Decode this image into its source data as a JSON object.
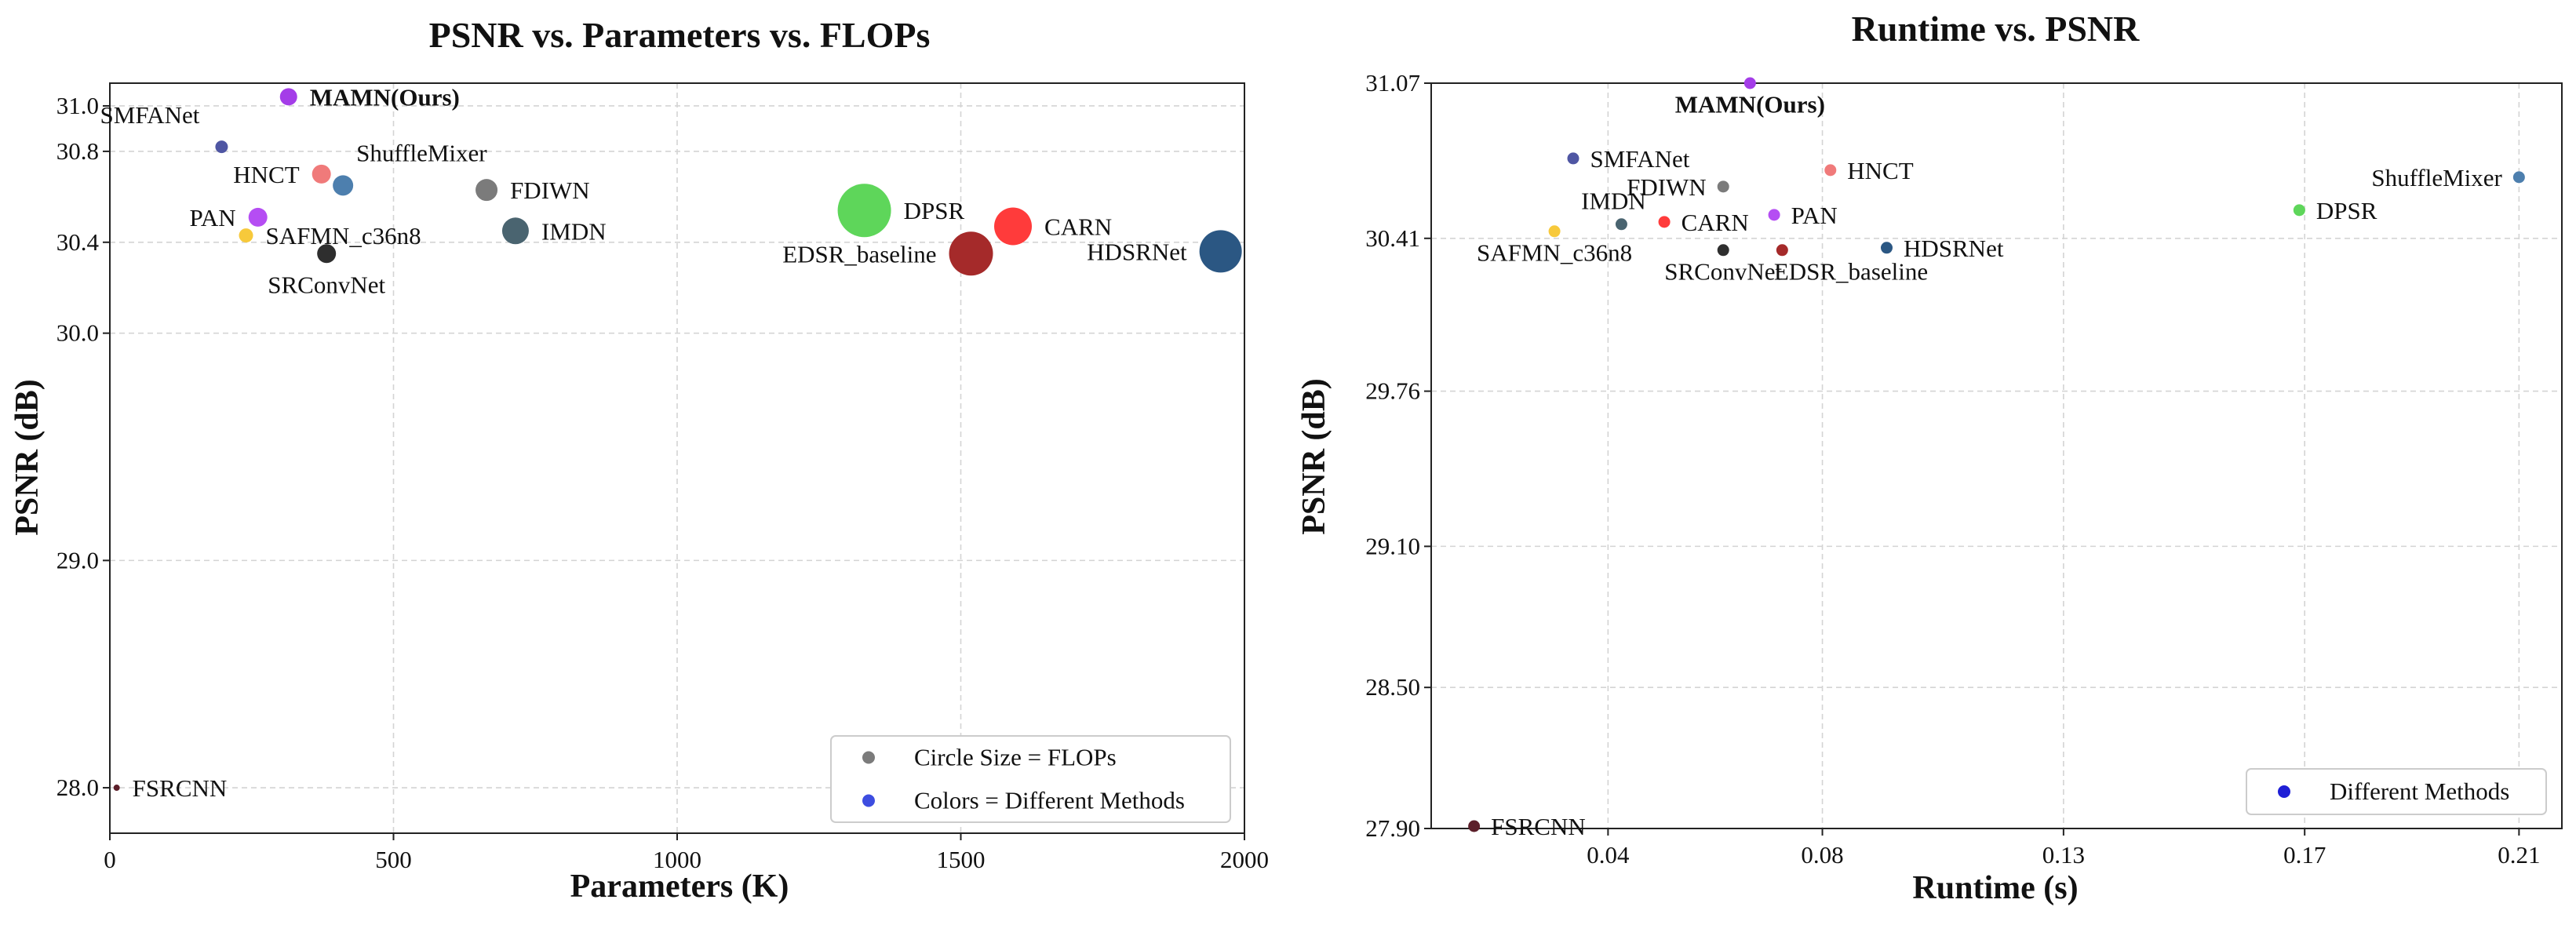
{
  "chart_data": [
    {
      "type": "scatter",
      "title": "PSNR vs. Parameters vs. FLOPs",
      "xlabel": "Parameters (K)",
      "ylabel": "PSNR (dB)",
      "xlim": [
        0,
        2000
      ],
      "ylim": [
        27.8,
        31.1
      ],
      "xticks": [
        0,
        500,
        1000,
        1500,
        2000
      ],
      "xtick_labels": [
        "0",
        "500",
        "1000",
        "1500",
        "2000"
      ],
      "yticks": [
        28.0,
        29.0,
        30.0,
        30.4,
        30.8,
        31.0
      ],
      "ytick_labels": [
        "28.0",
        "29.0",
        "30.0",
        "30.4",
        "30.8",
        "31.0"
      ],
      "grid": true,
      "points": [
        {
          "name": "MAMN(Ours)",
          "x": 315,
          "y": 31.04,
          "size": 11,
          "color": "#a43de8",
          "label_pos": "right",
          "bold": true
        },
        {
          "name": "SMFANet",
          "x": 197,
          "y": 30.82,
          "size": 8,
          "color": "#4f56a3",
          "label_pos": "above-left",
          "bold": false
        },
        {
          "name": "HNCT",
          "x": 373,
          "y": 30.7,
          "size": 12,
          "color": "#f07a7a",
          "label_pos": "left",
          "bold": false
        },
        {
          "name": "ShuffleMixer",
          "x": 411,
          "y": 30.65,
          "size": 13,
          "color": "#4d7fae",
          "label_pos": "above-right",
          "bold": false
        },
        {
          "name": "FDIWN",
          "x": 664,
          "y": 30.63,
          "size": 14,
          "color": "#7b7b7b",
          "label_pos": "right",
          "bold": false
        },
        {
          "name": "PAN",
          "x": 261,
          "y": 30.51,
          "size": 12,
          "color": "#b54df3",
          "label_pos": "left",
          "bold": false
        },
        {
          "name": "SAFMN_c36n8",
          "x": 240,
          "y": 30.43,
          "size": 9,
          "color": "#f7c93b",
          "label_pos": "right",
          "bold": false
        },
        {
          "name": "SRConvNet",
          "x": 382,
          "y": 30.35,
          "size": 12,
          "color": "#2e2e2e",
          "label_pos": "below",
          "bold": false
        },
        {
          "name": "IMDN",
          "x": 715,
          "y": 30.45,
          "size": 17,
          "color": "#4a6470",
          "label_pos": "right",
          "bold": false
        },
        {
          "name": "DPSR",
          "x": 1330,
          "y": 30.54,
          "size": 34,
          "color": "#5ed65a",
          "label_pos": "right",
          "bold": false
        },
        {
          "name": "CARN",
          "x": 1592,
          "y": 30.47,
          "size": 24,
          "color": "#ff3b3b",
          "label_pos": "right",
          "bold": false
        },
        {
          "name": "EDSR_baseline",
          "x": 1518,
          "y": 30.35,
          "size": 28,
          "color": "#a52a2a",
          "label_pos": "left",
          "bold": false
        },
        {
          "name": "HDSRNet",
          "x": 1958,
          "y": 30.36,
          "size": 27,
          "color": "#2b5783",
          "label_pos": "left",
          "bold": false
        },
        {
          "name": "FSRCNN",
          "x": 12,
          "y": 28.0,
          "size": 4,
          "color": "#5c1f2a",
          "label_pos": "right",
          "bold": false
        }
      ],
      "legend": {
        "position": "bottom-right",
        "entries": [
          {
            "label": "Circle Size = FLOPs",
            "color": "#7b7b7b"
          },
          {
            "label": "Colors = Different Methods",
            "color": "#3d4de0"
          }
        ]
      }
    },
    {
      "type": "scatter",
      "title": "Runtime vs. PSNR",
      "xlabel": "Runtime (s)",
      "ylabel": "PSNR (dB)",
      "xlim": [
        0.007,
        0.218
      ],
      "ylim": [
        27.9,
        31.07
      ],
      "xticks": [
        0.04,
        0.08,
        0.125,
        0.17,
        0.21
      ],
      "xtick_labels": [
        "0.04",
        "0.08",
        "0.13",
        "0.17",
        "0.21"
      ],
      "yticks": [
        27.9,
        28.5,
        29.1,
        29.76,
        30.41,
        31.07
      ],
      "ytick_labels": [
        "27.90",
        "28.50",
        "29.10",
        "29.76",
        "30.41",
        "31.07"
      ],
      "grid": true,
      "points": [
        {
          "name": "MAMN(Ours)",
          "x": 0.0665,
          "y": 31.07,
          "color": "#a43de8",
          "label_pos": "below",
          "bold": true
        },
        {
          "name": "SMFANet",
          "x": 0.0335,
          "y": 30.75,
          "color": "#4f56a3",
          "label_pos": "right",
          "bold": false
        },
        {
          "name": "HNCT",
          "x": 0.0815,
          "y": 30.7,
          "color": "#f07a7a",
          "label_pos": "right",
          "bold": false
        },
        {
          "name": "FDIWN",
          "x": 0.0615,
          "y": 30.63,
          "color": "#7b7b7b",
          "label_pos": "left",
          "bold": false
        },
        {
          "name": "ShuffleMixer",
          "x": 0.21,
          "y": 30.67,
          "color": "#4d7fae",
          "label_pos": "left",
          "bold": false
        },
        {
          "name": "DPSR",
          "x": 0.169,
          "y": 30.53,
          "color": "#5ed65a",
          "label_pos": "right",
          "bold": false
        },
        {
          "name": "PAN",
          "x": 0.071,
          "y": 30.51,
          "color": "#b54df3",
          "label_pos": "right",
          "bold": false
        },
        {
          "name": "CARN",
          "x": 0.0505,
          "y": 30.48,
          "color": "#ff3b3b",
          "label_pos": "right",
          "bold": false
        },
        {
          "name": "IMDN",
          "x": 0.0425,
          "y": 30.47,
          "color": "#4a6470",
          "label_pos": "above",
          "bold": false
        },
        {
          "name": "SAFMN_c36n8",
          "x": 0.03,
          "y": 30.44,
          "color": "#f7c93b",
          "label_pos": "below",
          "bold": false
        },
        {
          "name": "SRConvNet",
          "x": 0.0615,
          "y": 30.36,
          "color": "#2e2e2e",
          "label_pos": "below",
          "bold": false
        },
        {
          "name": "EDSR_baseline",
          "x": 0.0725,
          "y": 30.36,
          "color": "#a52a2a",
          "label_pos": "below-right",
          "bold": false
        },
        {
          "name": "HDSRNet",
          "x": 0.092,
          "y": 30.37,
          "color": "#2b5783",
          "label_pos": "right",
          "bold": false
        },
        {
          "name": "FSRCNN",
          "x": 0.015,
          "y": 27.91,
          "color": "#5c1f2a",
          "label_pos": "right",
          "bold": false
        }
      ],
      "legend": {
        "position": "bottom-right",
        "entries": [
          {
            "label": "Different Methods",
            "color": "#1f1fd6"
          }
        ]
      }
    }
  ]
}
